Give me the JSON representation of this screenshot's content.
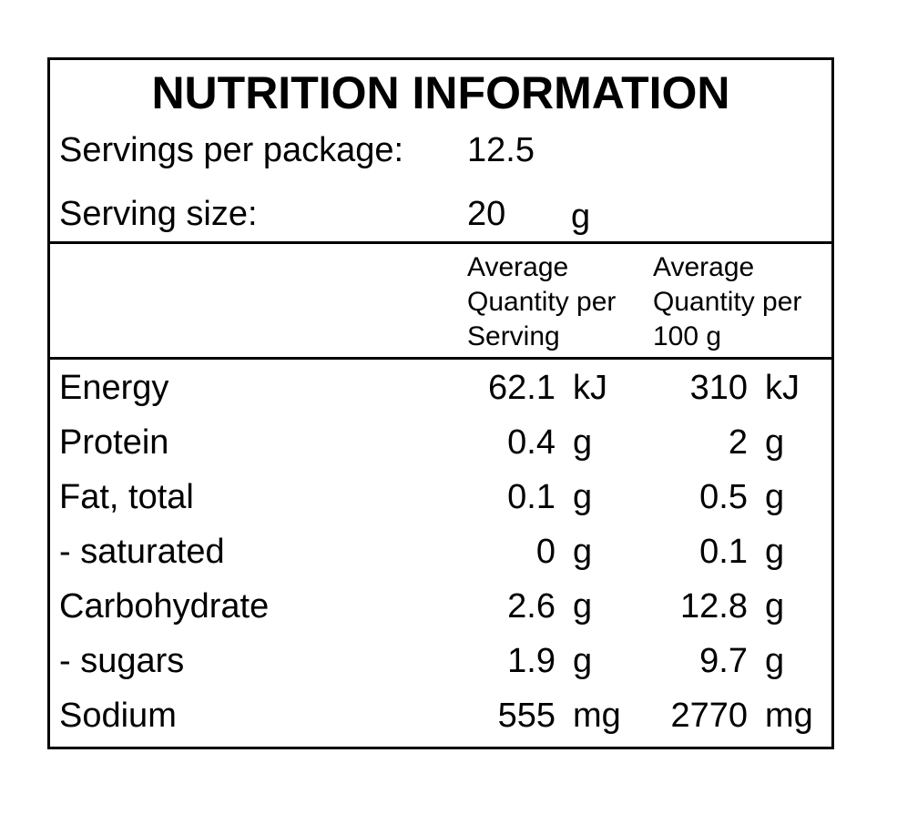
{
  "title": "NUTRITION INFORMATION",
  "servings": {
    "label": "Servings per package:",
    "value": "12.5"
  },
  "serving_size": {
    "label": "Serving size:",
    "value": "20",
    "unit": "g"
  },
  "columns": {
    "per_serving": [
      "Average",
      "Quantity per",
      "Serving"
    ],
    "per_100g": [
      "Average",
      "Quantity per",
      "100 g"
    ]
  },
  "rows": [
    {
      "label": "Energy",
      "serving": "62.1",
      "serving_unit": "kJ",
      "per100": "310",
      "per100_unit": "kJ"
    },
    {
      "label": "Protein",
      "serving": "0.4",
      "serving_unit": "g",
      "per100": "2",
      "per100_unit": "g"
    },
    {
      "label": "Fat, total",
      "serving": "0.1",
      "serving_unit": "g",
      "per100": "0.5",
      "per100_unit": "g"
    },
    {
      "label": "- saturated",
      "serving": "0",
      "serving_unit": "g",
      "per100": "0.1",
      "per100_unit": "g"
    },
    {
      "label": "Carbohydrate",
      "serving": "2.6",
      "serving_unit": "g",
      "per100": "12.8",
      "per100_unit": "g"
    },
    {
      "label": "- sugars",
      "serving": "1.9",
      "serving_unit": "g",
      "per100": "9.7",
      "per100_unit": "g"
    },
    {
      "label": "Sodium",
      "serving": "555",
      "serving_unit": "mg",
      "per100": "2770",
      "per100_unit": "mg"
    }
  ]
}
